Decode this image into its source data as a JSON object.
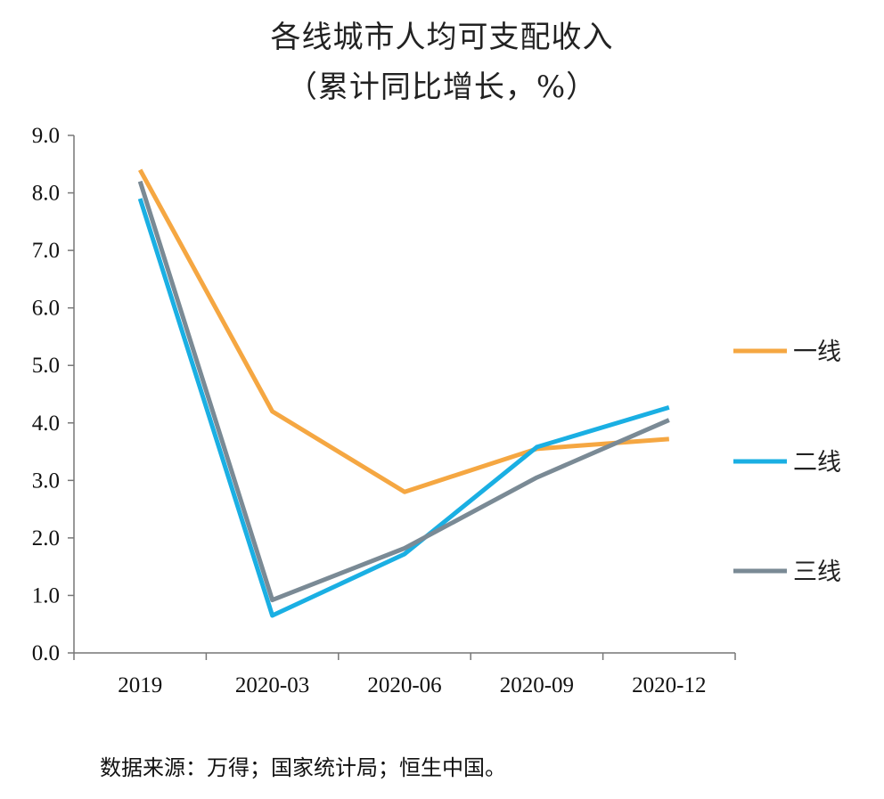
{
  "chart_data": {
    "type": "line",
    "title": "各线城市人均可支配收入",
    "subtitle": "（累计同比增长，%）",
    "categories": [
      "2019",
      "2020-03",
      "2020-06",
      "2020-09",
      "2020-12"
    ],
    "ylim": [
      0,
      9
    ],
    "yticks": [
      "0.0",
      "1.0",
      "2.0",
      "3.0",
      "4.0",
      "5.0",
      "6.0",
      "7.0",
      "8.0",
      "9.0"
    ],
    "grid": false,
    "legend_position": "right",
    "series": [
      {
        "name": "一线",
        "color": "#f5a742",
        "values": [
          8.4,
          4.2,
          2.8,
          3.55,
          3.72
        ]
      },
      {
        "name": "二线",
        "color": "#1aafe3",
        "values": [
          7.9,
          0.65,
          1.72,
          3.58,
          4.27
        ]
      },
      {
        "name": "三线",
        "color": "#7a8a95",
        "values": [
          8.2,
          0.92,
          1.82,
          3.05,
          4.05
        ]
      }
    ]
  },
  "source": "数据来源：万得；国家统计局；恒生中国。"
}
